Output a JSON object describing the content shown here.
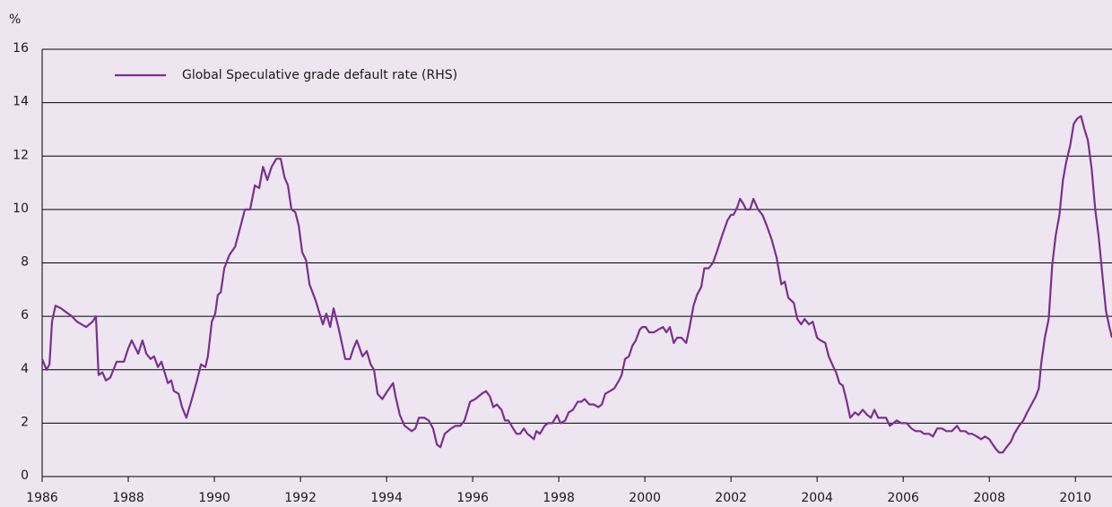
{
  "chart_data": {
    "type": "line",
    "ylabel": "%",
    "legend": "upper left",
    "grid": true,
    "xlim": [
      1986,
      2010.85
    ],
    "xticks": [
      1986,
      1988,
      1990,
      1992,
      1994,
      1996,
      1998,
      2000,
      2002,
      2004,
      2006,
      2008,
      2010
    ],
    "ylim": [
      0,
      16
    ],
    "yticks": [
      0,
      2,
      4,
      6,
      8,
      10,
      12,
      14,
      16
    ],
    "x": [
      1986.0,
      1986.1,
      1986.17,
      1986.23,
      1986.31,
      1986.44,
      1986.52,
      1986.69,
      1986.81,
      1987.02,
      1987.17,
      1987.25,
      1987.31,
      1987.4,
      1987.48,
      1987.58,
      1987.73,
      1987.9,
      1988.0,
      1988.08,
      1988.23,
      1988.33,
      1988.42,
      1988.52,
      1988.6,
      1988.69,
      1988.77,
      1988.92,
      1989.0,
      1989.06,
      1989.17,
      1989.25,
      1989.35,
      1989.46,
      1989.58,
      1989.69,
      1989.79,
      1989.85,
      1989.94,
      1990.02,
      1990.08,
      1990.15,
      1990.23,
      1990.35,
      1990.48,
      1990.58,
      1990.71,
      1990.83,
      1990.94,
      1991.04,
      1991.13,
      1991.23,
      1991.33,
      1991.44,
      1991.54,
      1991.63,
      1991.71,
      1991.79,
      1991.88,
      1991.96,
      1992.04,
      1992.13,
      1992.21,
      1992.35,
      1992.52,
      1992.6,
      1992.69,
      1992.77,
      1992.88,
      1993.04,
      1993.15,
      1993.23,
      1993.31,
      1993.44,
      1993.54,
      1993.63,
      1993.71,
      1993.79,
      1993.9,
      1994.02,
      1994.15,
      1994.21,
      1994.31,
      1994.42,
      1994.5,
      1994.58,
      1994.67,
      1994.75,
      1994.88,
      1994.98,
      1995.08,
      1995.17,
      1995.25,
      1995.35,
      1995.5,
      1995.6,
      1995.71,
      1995.81,
      1995.94,
      1996.06,
      1996.21,
      1996.31,
      1996.4,
      1996.48,
      1996.56,
      1996.67,
      1996.75,
      1996.83,
      1996.94,
      1997.02,
      1997.1,
      1997.19,
      1997.27,
      1997.35,
      1997.42,
      1997.48,
      1997.56,
      1997.67,
      1997.75,
      1997.85,
      1997.96,
      1998.04,
      1998.15,
      1998.23,
      1998.33,
      1998.44,
      1998.52,
      1998.6,
      1998.71,
      1998.81,
      1998.92,
      1999.0,
      1999.08,
      1999.19,
      1999.29,
      1999.4,
      1999.46,
      1999.54,
      1999.63,
      1999.71,
      1999.79,
      1999.88,
      1999.94,
      2000.02,
      2000.1,
      2000.21,
      2000.31,
      2000.42,
      2000.5,
      2000.58,
      2000.67,
      2000.75,
      2000.85,
      2000.96,
      2001.04,
      2001.13,
      2001.21,
      2001.31,
      2001.38,
      2001.48,
      2001.58,
      2001.69,
      2001.79,
      2001.92,
      2002.0,
      2002.06,
      2002.15,
      2002.21,
      2002.29,
      2002.35,
      2002.44,
      2002.52,
      2002.63,
      2002.73,
      2002.83,
      2002.94,
      2003.06,
      2003.17,
      2003.25,
      2003.33,
      2003.46,
      2003.54,
      2003.63,
      2003.71,
      2003.81,
      2003.9,
      2004.0,
      2004.08,
      2004.19,
      2004.27,
      2004.38,
      2004.44,
      2004.52,
      2004.6,
      2004.69,
      2004.77,
      2004.88,
      2004.96,
      2005.06,
      2005.17,
      2005.25,
      2005.33,
      2005.42,
      2005.52,
      2005.6,
      2005.69,
      2005.77,
      2005.85,
      2005.96,
      2006.08,
      2006.19,
      2006.29,
      2006.4,
      2006.48,
      2006.6,
      2006.69,
      2006.79,
      2006.9,
      2007.0,
      2007.13,
      2007.25,
      2007.33,
      2007.44,
      2007.52,
      2007.6,
      2007.71,
      2007.81,
      2007.9,
      2008.0,
      2008.08,
      2008.17,
      2008.23,
      2008.31,
      2008.4,
      2008.5,
      2008.58,
      2008.69,
      2008.79,
      2008.88,
      2008.98,
      2009.08,
      2009.15,
      2009.21,
      2009.29,
      2009.38,
      2009.46,
      2009.54,
      2009.63,
      2009.71,
      2009.79,
      2009.88,
      2009.96,
      2010.04,
      2010.13,
      2010.21,
      2010.29,
      2010.38,
      2010.46,
      2010.54,
      2010.63,
      2010.71,
      2010.79,
      2010.85
    ],
    "series": [
      {
        "name": "Global Speculative grade default rate (RHS)",
        "color": "#7b2f8f",
        "values": [
          4.4,
          4.0,
          4.2,
          5.8,
          6.4,
          6.3,
          6.2,
          6.0,
          5.8,
          5.6,
          5.8,
          6.0,
          3.8,
          3.9,
          3.6,
          3.7,
          4.3,
          4.3,
          4.8,
          5.1,
          4.6,
          5.1,
          4.6,
          4.4,
          4.5,
          4.1,
          4.3,
          3.5,
          3.6,
          3.2,
          3.1,
          2.6,
          2.2,
          2.8,
          3.5,
          4.2,
          4.1,
          4.5,
          5.8,
          6.1,
          6.8,
          6.9,
          7.8,
          8.3,
          8.6,
          9.2,
          10.0,
          10.0,
          10.9,
          10.8,
          11.6,
          11.1,
          11.6,
          11.9,
          11.9,
          11.2,
          10.9,
          10.0,
          9.9,
          9.4,
          8.4,
          8.1,
          7.2,
          6.6,
          5.7,
          6.1,
          5.6,
          6.3,
          5.6,
          4.4,
          4.4,
          4.8,
          5.1,
          4.5,
          4.7,
          4.2,
          4.0,
          3.1,
          2.9,
          3.2,
          3.5,
          3.0,
          2.3,
          1.9,
          1.8,
          1.7,
          1.8,
          2.2,
          2.2,
          2.1,
          1.8,
          1.2,
          1.1,
          1.6,
          1.8,
          1.9,
          1.9,
          2.1,
          2.8,
          2.9,
          3.1,
          3.2,
          3.0,
          2.6,
          2.7,
          2.5,
          2.1,
          2.1,
          1.8,
          1.6,
          1.6,
          1.8,
          1.6,
          1.5,
          1.4,
          1.7,
          1.6,
          1.9,
          2.0,
          2.0,
          2.3,
          2.0,
          2.1,
          2.4,
          2.5,
          2.8,
          2.8,
          2.9,
          2.7,
          2.7,
          2.6,
          2.7,
          3.1,
          3.2,
          3.3,
          3.6,
          3.8,
          4.4,
          4.5,
          4.9,
          5.1,
          5.5,
          5.6,
          5.6,
          5.4,
          5.4,
          5.5,
          5.6,
          5.4,
          5.6,
          5.0,
          5.2,
          5.2,
          5.0,
          5.6,
          6.4,
          6.8,
          7.1,
          7.8,
          7.8,
          8.0,
          8.5,
          9.0,
          9.6,
          9.8,
          9.8,
          10.1,
          10.4,
          10.2,
          10.0,
          10.0,
          10.4,
          10.0,
          9.8,
          9.4,
          8.9,
          8.2,
          7.2,
          7.3,
          6.7,
          6.5,
          5.9,
          5.7,
          5.9,
          5.7,
          5.8,
          5.2,
          5.1,
          5.0,
          4.5,
          4.1,
          3.9,
          3.5,
          3.4,
          2.8,
          2.2,
          2.4,
          2.3,
          2.5,
          2.3,
          2.2,
          2.5,
          2.2,
          2.2,
          2.2,
          1.9,
          2.0,
          2.1,
          2.0,
          2.0,
          1.8,
          1.7,
          1.7,
          1.6,
          1.6,
          1.5,
          1.8,
          1.8,
          1.7,
          1.7,
          1.9,
          1.7,
          1.7,
          1.6,
          1.6,
          1.5,
          1.4,
          1.5,
          1.4,
          1.2,
          1.0,
          0.9,
          0.9,
          1.1,
          1.3,
          1.6,
          1.9,
          2.1,
          2.4,
          2.7,
          3.0,
          3.3,
          4.3,
          5.2,
          5.9,
          7.9,
          9.0,
          9.8,
          11.1,
          11.8,
          12.4,
          13.2,
          13.4,
          13.5,
          13.0,
          12.6,
          11.5,
          10.0,
          9.0,
          7.5,
          6.2,
          5.6,
          5.2
        ]
      }
    ]
  }
}
